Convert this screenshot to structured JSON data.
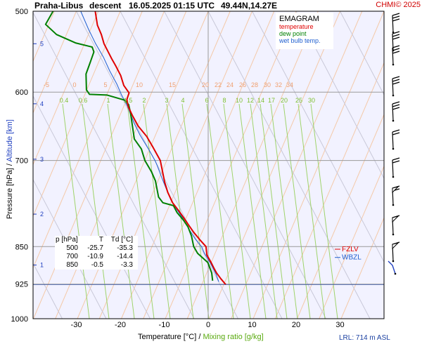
{
  "header": {
    "station": "Praha-Libus",
    "mode": "descent",
    "datetime": "16.05.2025 01:15 UTC",
    "coords": "49.44N,14.27E",
    "credit": "CHMI© 2025"
  },
  "labels": {
    "ylabel_pressure": "Pressure [hPa]",
    "ylabel_sep": "/",
    "ylabel_altitude": "Altitude [km]",
    "xlabel_temp": "Temperature [°C]",
    "xlabel_sep": "/",
    "xlabel_mix": "Mixing ratio [g/kg]",
    "lrl": "LRL: 714 m ASL",
    "fzlv": "FZLV",
    "wbzl": "WBZL"
  },
  "legend": {
    "title": "EMAGRAM",
    "items": [
      {
        "label": "temperature",
        "color": "#e00000"
      },
      {
        "label": "dew point",
        "color": "#008000"
      },
      {
        "label": "wet bulb temp.",
        "color": "#2060d0"
      }
    ]
  },
  "table": {
    "header": [
      "p [hPa]",
      "T",
      "Td [°C]"
    ],
    "rows": [
      [
        "500",
        "-25.7",
        "-35.3"
      ],
      [
        "700",
        "-10.9",
        "-14.4"
      ],
      [
        "850",
        "-0.5",
        "-3.3"
      ]
    ]
  },
  "colors": {
    "background": "#f2f2ff",
    "temperature": "#e00000",
    "dewpoint": "#008000",
    "wetbulb": "#2060d0",
    "isotherm_label": "#f0a070",
    "mixing": "#88cc44",
    "altitude": "#2040c0",
    "grid": "#888888"
  },
  "chart_data": {
    "type": "line",
    "title": "EMAGRAM",
    "xlabel": "Temperature [°C] / Mixing ratio [g/kg]",
    "ylabel": "Pressure [hPa] / Altitude [km]",
    "xlim": [
      -39,
      40
    ],
    "ylim": [
      1000,
      500
    ],
    "y_scale": "log",
    "x_ticks": [
      -30,
      -20,
      -10,
      0,
      10,
      20,
      30
    ],
    "y_ticks": [
      500,
      600,
      700,
      850,
      925,
      1000
    ],
    "altitude_ticks_km": [
      {
        "km": 1,
        "p": 886
      },
      {
        "km": 2,
        "p": 790
      },
      {
        "km": 3,
        "p": 698
      },
      {
        "km": 4,
        "p": 616
      },
      {
        "km": 5,
        "p": 538
      }
    ],
    "isotherm_labels": [
      -5,
      0,
      5,
      10,
      15,
      20,
      22,
      24,
      26,
      28,
      30,
      32,
      34
    ],
    "mixing_ratio_labels": [
      "0.4",
      "0.6",
      "1",
      "1.5",
      "2",
      "3",
      "4",
      "6",
      "8",
      "10",
      "12",
      "14",
      "17",
      "20",
      "25",
      "30"
    ],
    "series": [
      {
        "name": "temperature",
        "points": [
          [
            4.0,
            926
          ],
          [
            2.9,
            914
          ],
          [
            1.9,
            902
          ],
          [
            1.3,
            892
          ],
          [
            0.6,
            880
          ],
          [
            -0.3,
            866
          ],
          [
            -0.5,
            850
          ],
          [
            -2.0,
            836
          ],
          [
            -3.4,
            822
          ],
          [
            -4.6,
            808
          ],
          [
            -5.6,
            796
          ],
          [
            -6.7,
            784
          ],
          [
            -8.1,
            770
          ],
          [
            -9.2,
            752
          ],
          [
            -9.9,
            735
          ],
          [
            -10.9,
            700
          ],
          [
            -12.6,
            679
          ],
          [
            -14.0,
            663
          ],
          [
            -15.9,
            648
          ],
          [
            -17.2,
            633
          ],
          [
            -18.2,
            620
          ],
          [
            -18.5,
            610
          ],
          [
            -18.0,
            601
          ],
          [
            -19.2,
            591
          ],
          [
            -19.9,
            578
          ],
          [
            -21.0,
            566
          ],
          [
            -22.0,
            556
          ],
          [
            -23.7,
            538
          ],
          [
            -24.3,
            527
          ],
          [
            -25.2,
            516
          ],
          [
            -25.7,
            500
          ]
        ]
      },
      {
        "name": "dew point",
        "points": [
          [
            1.0,
            918
          ],
          [
            0.8,
            902
          ],
          [
            -0.1,
            881
          ],
          [
            -2.4,
            863
          ],
          [
            -3.3,
            850
          ],
          [
            -3.8,
            830
          ],
          [
            -4.6,
            813
          ],
          [
            -5.6,
            801
          ],
          [
            -7.1,
            787
          ],
          [
            -7.9,
            775
          ],
          [
            -10.3,
            770
          ],
          [
            -11.3,
            760
          ],
          [
            -12.0,
            733
          ],
          [
            -12.9,
            718
          ],
          [
            -14.4,
            700
          ],
          [
            -15.2,
            682
          ],
          [
            -16.8,
            667
          ],
          [
            -17.3,
            645
          ],
          [
            -17.7,
            628
          ],
          [
            -18.1,
            617
          ],
          [
            -19.0,
            611
          ],
          [
            -23.0,
            604
          ],
          [
            -27.0,
            603
          ],
          [
            -27.7,
            597
          ],
          [
            -27.8,
            576
          ],
          [
            -26.9,
            562
          ],
          [
            -26.0,
            548
          ],
          [
            -26.4,
            542
          ],
          [
            -30.2,
            537
          ],
          [
            -34.5,
            527
          ],
          [
            -37.0,
            515
          ],
          [
            -35.3,
            500
          ]
        ]
      },
      {
        "name": "wet bulb temp.",
        "points": [
          [
            2.4,
            920
          ],
          [
            1.8,
            905
          ],
          [
            0.5,
            882
          ],
          [
            -0.9,
            862
          ],
          [
            -1.5,
            850
          ],
          [
            -2.9,
            836
          ],
          [
            -4.3,
            818
          ],
          [
            -5.8,
            797
          ],
          [
            -7.3,
            780
          ],
          [
            -8.5,
            765
          ],
          [
            -9.6,
            745
          ],
          [
            -10.6,
            727
          ],
          [
            -11.6,
            708
          ],
          [
            -12.1,
            700
          ],
          [
            -13.5,
            683
          ],
          [
            -15.5,
            661
          ],
          [
            -16.9,
            643
          ],
          [
            -17.7,
            630
          ],
          [
            -18.3,
            620
          ],
          [
            -19.7,
            604
          ],
          [
            -20.8,
            589
          ],
          [
            -22.4,
            572
          ],
          [
            -23.8,
            555
          ],
          [
            -25.6,
            538
          ],
          [
            -27.2,
            521
          ],
          [
            -29.0,
            500
          ]
        ]
      }
    ],
    "levels": [
      {
        "name": "FZLV",
        "p": 855
      },
      {
        "name": "WBZL",
        "p": 871
      }
    ],
    "lrl_p": 926
  }
}
